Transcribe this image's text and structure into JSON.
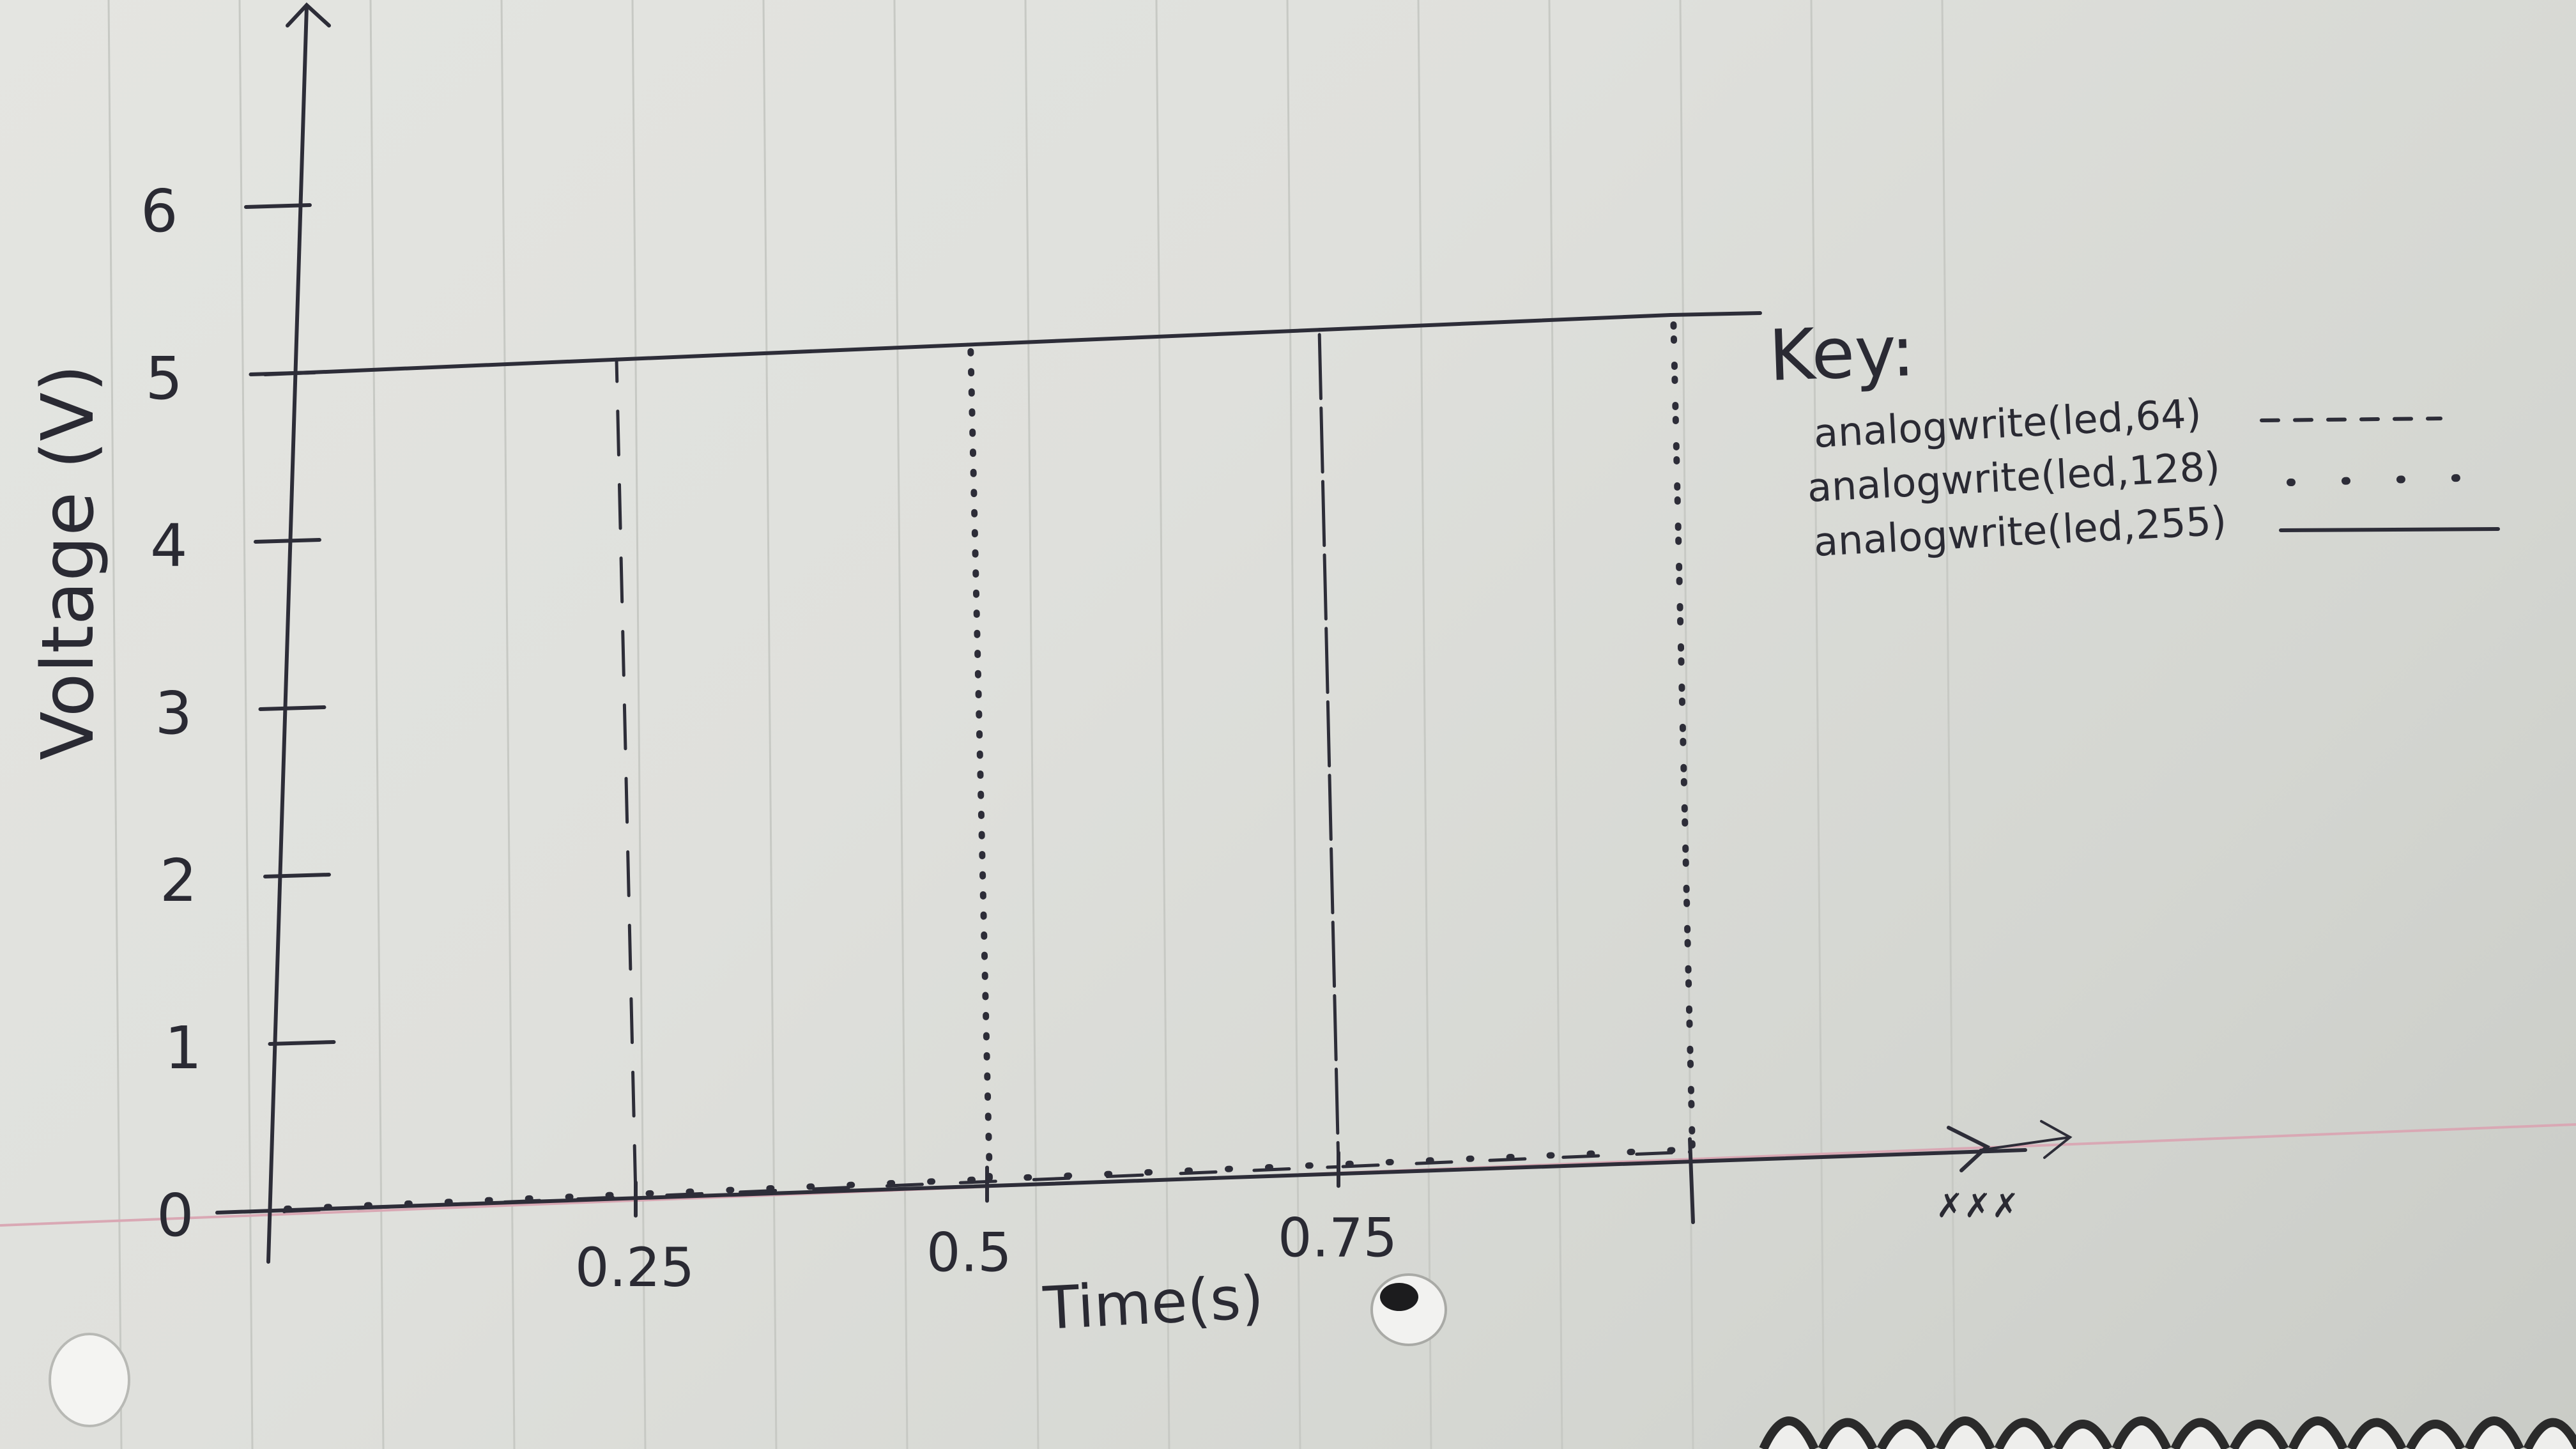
{
  "chart_data": {
    "type": "line",
    "xlabel": "Time(s)",
    "ylabel": "Voltage (V)",
    "x_ticks": [
      "0.25",
      "0.5",
      "0.75"
    ],
    "y_ticks": [
      "0",
      "1",
      "2",
      "3",
      "4",
      "5",
      "6"
    ],
    "xlim": [
      0,
      1.25
    ],
    "ylim": [
      0,
      6.5
    ],
    "legend_title": "Key:",
    "legend_position": "right",
    "series": [
      {
        "name": "analogwrite(led,64)",
        "style": "dashed",
        "points": [
          [
            0,
            0
          ],
          [
            0.25,
            0
          ],
          [
            0.25,
            5
          ],
          [
            0.25,
            0
          ],
          [
            0.5,
            0
          ],
          [
            0.75,
            0
          ],
          [
            0.75,
            5
          ],
          [
            0.75,
            0
          ],
          [
            1.0,
            0
          ]
        ]
      },
      {
        "name": "analogwrite(led,128)",
        "style": "dotted",
        "points": [
          [
            0,
            0
          ],
          [
            0.5,
            0
          ],
          [
            0.5,
            5
          ],
          [
            0.5,
            0
          ],
          [
            1.0,
            0
          ],
          [
            1.0,
            5
          ],
          [
            1.0,
            0
          ]
        ]
      },
      {
        "name": "analogwrite(led,255)",
        "style": "solid",
        "points": [
          [
            0,
            5
          ],
          [
            1.0,
            5
          ]
        ]
      }
    ]
  }
}
